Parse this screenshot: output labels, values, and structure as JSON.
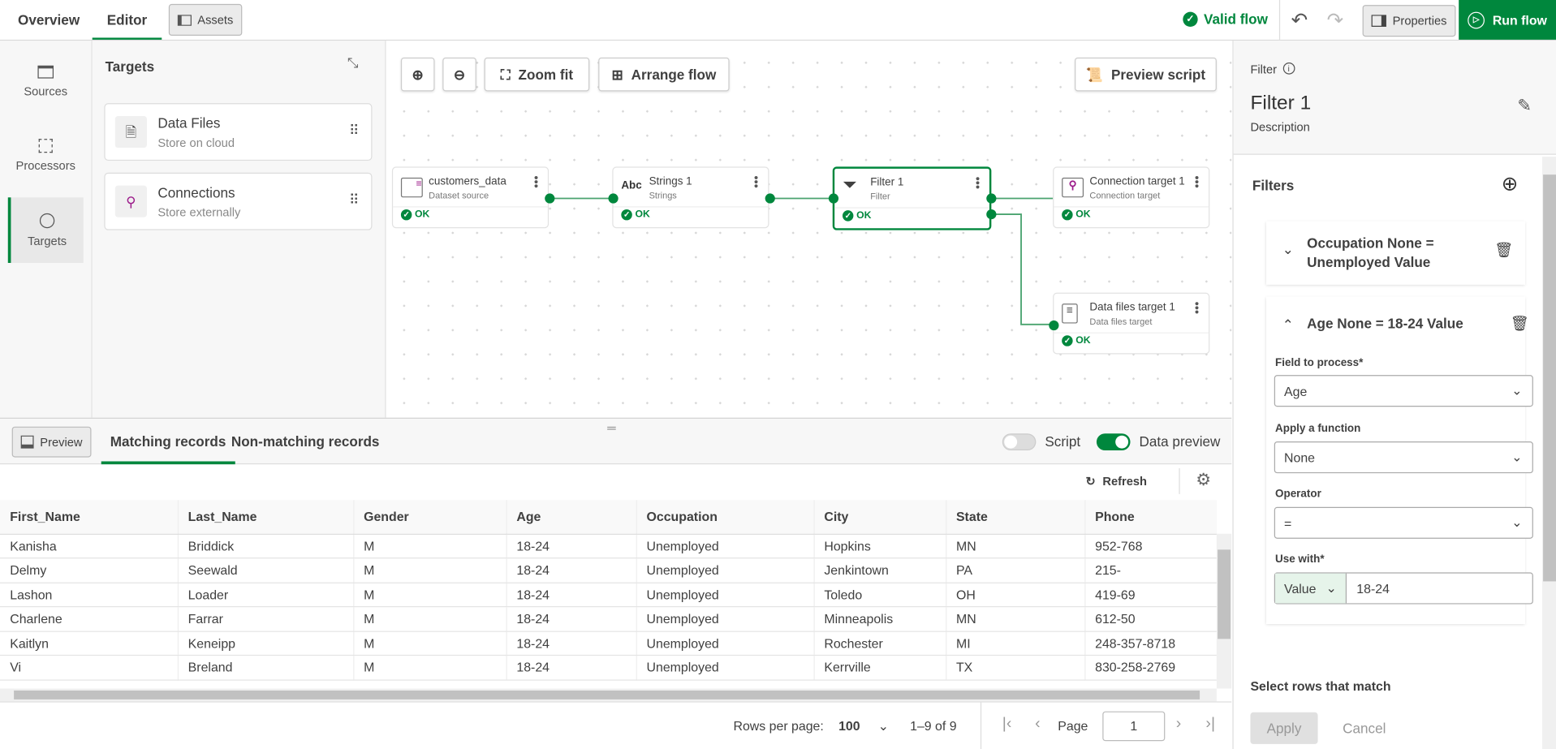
{
  "topbar": {
    "tabs": [
      {
        "label": "Overview"
      },
      {
        "label": "Editor",
        "active": true
      }
    ],
    "assets_label": "Assets",
    "valid_label": "Valid flow",
    "properties_label": "Properties",
    "run_label": "Run flow"
  },
  "colors": {
    "accent": "#00873d",
    "source_icon": "#9c1b8a"
  },
  "rail": {
    "items": [
      {
        "label": "Sources",
        "icon": "table-icon"
      },
      {
        "label": "Processors",
        "icon": "chip-icon"
      },
      {
        "label": "Targets",
        "icon": "target-icon",
        "active": true
      }
    ]
  },
  "targets_panel": {
    "title": "Targets",
    "items": [
      {
        "title": "Data Files",
        "subtitle": "Store on cloud",
        "icon": "file-icon"
      },
      {
        "title": "Connections",
        "subtitle": "Store externally",
        "icon": "connection-icon"
      }
    ]
  },
  "canvas": {
    "zoom_in": "zoom-in-icon",
    "zoom_out": "zoom-out-icon",
    "zoom_fit": "Zoom fit",
    "arrange": "Arrange flow",
    "preview_script": "Preview script",
    "nodes": [
      {
        "title": "customers_data",
        "subtitle": "Dataset source",
        "status": "OK"
      },
      {
        "title": "Strings 1",
        "subtitle": "Strings",
        "status": "OK",
        "icon_text": "Abc"
      },
      {
        "title": "Filter 1",
        "subtitle": "Filter",
        "status": "OK",
        "selected": true
      },
      {
        "title": "Connection target 1",
        "subtitle": "Connection target",
        "status": "OK"
      },
      {
        "title": "Data files target 1",
        "subtitle": "Data files target",
        "status": "OK"
      }
    ]
  },
  "preview": {
    "button": "Preview",
    "tabs": [
      {
        "label": "Matching records",
        "active": true
      },
      {
        "label": "Non-matching records"
      }
    ],
    "script_toggle": {
      "label": "Script",
      "on": false
    },
    "data_preview_toggle": {
      "label": "Data preview",
      "on": true
    },
    "refresh": "Refresh",
    "columns": [
      "First_Name",
      "Last_Name",
      "Gender",
      "Age",
      "Occupation",
      "City",
      "State",
      "Phone"
    ],
    "rows": [
      [
        "Kanisha",
        "Briddick",
        "M",
        "18-24",
        "Unemployed",
        "Hopkins",
        "MN",
        "952-768"
      ],
      [
        "Delmy",
        "Seewald",
        "M",
        "18-24",
        "Unemployed",
        "Jenkintown",
        "PA",
        "215-"
      ],
      [
        "Lashon",
        "Loader",
        "M",
        "18-24",
        "Unemployed",
        "Toledo",
        "OH",
        "419-69"
      ],
      [
        "Charlene",
        "Farrar",
        "M",
        "18-24",
        "Unemployed",
        "Minneapolis",
        "MN",
        "612-50"
      ],
      [
        "Kaitlyn",
        "Keneipp",
        "M",
        "18-24",
        "Unemployed",
        "Rochester",
        "MI",
        "248-357-8718"
      ],
      [
        "Vi",
        "Breland",
        "M",
        "18-24",
        "Unemployed",
        "Kerrville",
        "TX",
        "830-258-2769"
      ]
    ],
    "footer": {
      "rows_per_page_label": "Rows per page:",
      "rows_per_page": "100",
      "range": "1–9 of 9",
      "page_label": "Page",
      "page": "1"
    }
  },
  "properties": {
    "type": "Filter",
    "name": "Filter 1",
    "description": "Description",
    "filters_title": "Filters",
    "filters": [
      {
        "summary": "Occupation None = Unemployed Value",
        "expanded": false
      },
      {
        "summary": "Age None = 18-24 Value",
        "expanded": true,
        "field_label": "Field to process*",
        "field": "Age",
        "function_label": "Apply a function",
        "function": "None",
        "operator_label": "Operator",
        "operator": "=",
        "use_with_label": "Use with*",
        "use_with_type": "Value",
        "use_with_value": "18-24"
      }
    ],
    "select_rows_label": "Select rows that match",
    "apply": "Apply",
    "cancel": "Cancel"
  }
}
